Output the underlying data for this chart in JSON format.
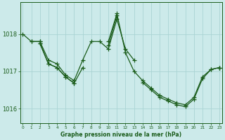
{
  "background_color": "#cceaea",
  "grid_color": "#aad4d4",
  "line_color": "#1a5c1a",
  "hours": [
    0,
    1,
    2,
    3,
    4,
    5,
    6,
    7,
    8,
    9,
    10,
    11,
    12,
    13,
    14,
    15,
    16,
    17,
    18,
    19,
    20,
    21,
    22,
    23
  ],
  "series": [
    [
      1018.0,
      1017.8,
      1017.8,
      null,
      null,
      null,
      null,
      null,
      null,
      null,
      null,
      null,
      null,
      null,
      null,
      null,
      null,
      null,
      null,
      null,
      null,
      null,
      null,
      1017.1
    ],
    [
      null,
      1017.8,
      1017.8,
      1017.3,
      1017.2,
      1016.9,
      1016.75,
      1017.3,
      1017.8,
      1017.8,
      1017.6,
      1018.4,
      1017.6,
      1017.3,
      null,
      null,
      null,
      null,
      null,
      null,
      null,
      null,
      null,
      null
    ],
    [
      null,
      null,
      1017.75,
      1017.2,
      1017.1,
      1016.85,
      1016.68,
      1017.1,
      null,
      null,
      1017.8,
      1018.55,
      1017.5,
      1017.0,
      1016.75,
      1016.55,
      1016.35,
      1016.25,
      1016.15,
      1016.1,
      1016.3,
      1016.85,
      1017.05,
      1017.1
    ],
    [
      null,
      null,
      1017.75,
      1017.2,
      1017.1,
      1016.85,
      1016.68,
      null,
      null,
      null,
      1017.7,
      1018.5,
      null,
      null,
      1016.7,
      1016.5,
      1016.3,
      1016.2,
      1016.1,
      1016.05,
      1016.25,
      1016.8,
      1017.05,
      1017.1
    ]
  ],
  "ylim": [
    1015.6,
    1018.85
  ],
  "yticks": [
    1016,
    1017,
    1018
  ],
  "xlim": [
    -0.3,
    23.3
  ],
  "xticks": [
    0,
    1,
    2,
    3,
    4,
    5,
    6,
    7,
    8,
    9,
    10,
    11,
    12,
    13,
    14,
    15,
    16,
    17,
    18,
    19,
    20,
    21,
    22,
    23
  ],
  "xtick_labels": [
    "0",
    "1",
    "2",
    "3",
    "4",
    "5",
    "6",
    "7",
    "8",
    "9",
    "10",
    "11",
    "12",
    "13",
    "14",
    "15",
    "16",
    "17",
    "18",
    "19",
    "20",
    "21",
    "22",
    "23"
  ],
  "bottom_label": "Graphe pression niveau de la mer (hPa)"
}
